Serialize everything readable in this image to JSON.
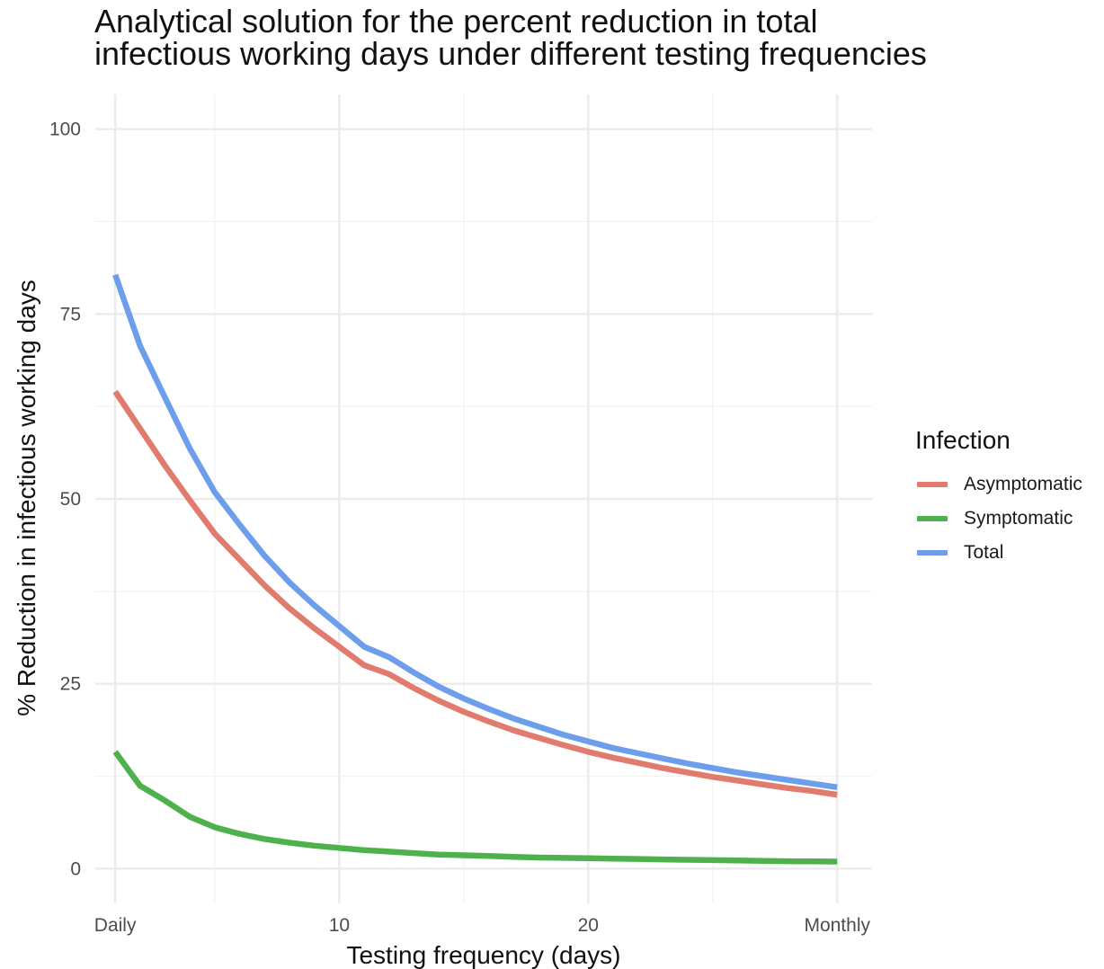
{
  "chart_data": {
    "type": "line",
    "title": "Analytical solution for the percent reduction in total infectious working days under different testing frequencies",
    "title_lines": [
      "Analytical solution for the percent reduction in total",
      "infectious working days under different testing frequencies"
    ],
    "xlabel": "Testing frequency (days)",
    "ylabel": "% Reduction in infectious working days",
    "xlim": [
      0.2,
      31.4
    ],
    "ylim": [
      -4.7,
      104.7
    ],
    "x_ticks": [
      {
        "value": 1,
        "label": "Daily"
      },
      {
        "value": 10,
        "label": "10"
      },
      {
        "value": 20,
        "label": "20"
      },
      {
        "value": 30,
        "label": "Monthly"
      }
    ],
    "x_minor_ticks": [
      5,
      15,
      25
    ],
    "y_ticks": [
      {
        "value": 0,
        "label": "0"
      },
      {
        "value": 25,
        "label": "25"
      },
      {
        "value": 50,
        "label": "50"
      },
      {
        "value": 75,
        "label": "75"
      },
      {
        "value": 100,
        "label": "100"
      }
    ],
    "y_minor_ticks": [
      12.5,
      37.5,
      62.5,
      87.5
    ],
    "grid": true,
    "legend": {
      "title": "Infection",
      "position": "right"
    },
    "x": [
      1,
      2,
      3,
      4,
      5,
      6,
      7,
      8,
      9,
      10,
      11,
      12,
      13,
      14,
      15,
      16,
      17,
      18,
      19,
      20,
      21,
      22,
      23,
      24,
      25,
      26,
      27,
      28,
      29,
      30
    ],
    "series": [
      {
        "name": "Asymptomatic",
        "color": "#E07B6E",
        "values": [
          64.5,
          59.5,
          54.5,
          49.8,
          45.3,
          41.8,
          38.3,
          35.2,
          32.5,
          30.0,
          27.5,
          26.3,
          24.4,
          22.7,
          21.2,
          19.9,
          18.7,
          17.7,
          16.7,
          15.8,
          15.0,
          14.3,
          13.6,
          13.0,
          12.4,
          11.9,
          11.4,
          10.9,
          10.5,
          10.0
        ]
      },
      {
        "name": "Symptomatic",
        "color": "#4DB24B",
        "values": [
          15.8,
          11.2,
          9.2,
          7.0,
          5.6,
          4.7,
          4.0,
          3.5,
          3.1,
          2.8,
          2.5,
          2.3,
          2.1,
          1.9,
          1.8,
          1.7,
          1.6,
          1.5,
          1.45,
          1.4,
          1.35,
          1.3,
          1.25,
          1.2,
          1.15,
          1.1,
          1.05,
          1.0,
          0.98,
          0.95
        ]
      },
      {
        "name": "Total",
        "color": "#6D9EEB",
        "values": [
          80.3,
          70.7,
          63.7,
          56.8,
          50.9,
          46.5,
          42.3,
          38.7,
          35.6,
          32.8,
          30.0,
          28.6,
          26.5,
          24.6,
          23.0,
          21.6,
          20.3,
          19.2,
          18.1,
          17.2,
          16.3,
          15.6,
          14.9,
          14.2,
          13.6,
          13.0,
          12.5,
          12.0,
          11.5,
          11.0
        ]
      }
    ]
  }
}
